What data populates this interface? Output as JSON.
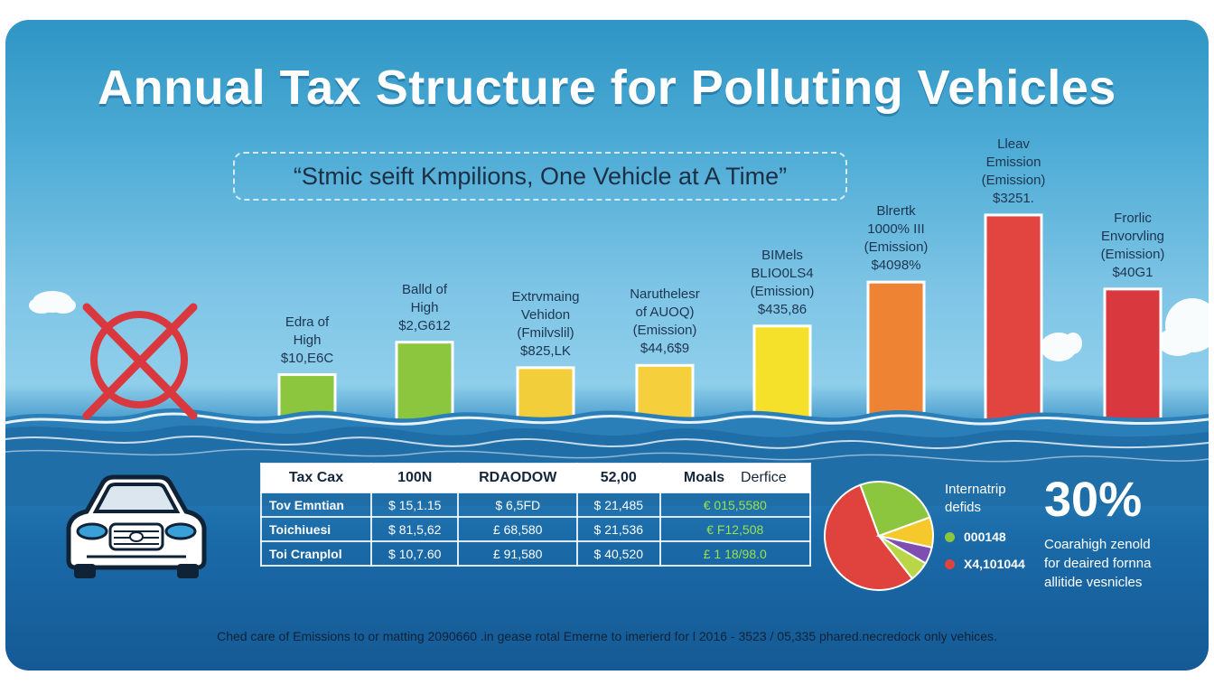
{
  "title": "Annual Tax Structure for Polluting Vehicles",
  "tagline": "“Stmic seift Kmpilions, One Vehicle at A Time”",
  "chart_data": {
    "type": "bar",
    "title": "Annual Tax Structure for Polluting Vehicles",
    "categories": [
      [
        "Edra of",
        "High",
        "$10,E6C"
      ],
      [
        "Balld of",
        "High",
        "$2,G612"
      ],
      [
        "Extrvmaing",
        "Vehidon",
        "(Fmilvslil)",
        "$825,LK"
      ],
      [
        "Naruthelesr",
        "of AUOQ)",
        "(Emission)",
        "$44,6$9"
      ],
      [
        "BIMels",
        "BLIO0LS4",
        "(Emission)",
        "$435,86"
      ],
      [
        "Blrertk",
        "1000% III",
        "(Emission)",
        "$4098%"
      ],
      [
        "Lleav",
        "Emission",
        "(Emission)",
        "$3251."
      ],
      [
        "Frorlic",
        "Envorvling",
        "(Emission)",
        "$40G1"
      ]
    ],
    "values": [
      2.4,
      3.8,
      2.7,
      2.8,
      4.5,
      6.4,
      9.3,
      6.1
    ],
    "colors": [
      "#8cc63e",
      "#8cc63e",
      "#f2cf3a",
      "#f5cf3c",
      "#f5e12a",
      "#ee8333",
      "#e2453f",
      "#d9383f"
    ],
    "ylim": [
      0,
      10
    ]
  },
  "table": {
    "headers": [
      "Tax Cax",
      "100N",
      "RDAODOW",
      "52,00",
      "Moals",
      "Derfice"
    ],
    "rows": [
      [
        "Tov Emntian",
        "$ 15,1.15",
        "$ 6,5FD",
        "$ 21,485",
        "€ 015,5580"
      ],
      [
        "Toichiuesi",
        "$ 81,5,62",
        "£ 68,580",
        "$ 21,536",
        "€ F12,508"
      ],
      [
        "Toi Cranplol",
        "$ 10,7.60",
        "£ 91,580",
        "$ 40,520",
        "£ 1 18/98.0"
      ]
    ]
  },
  "pie": {
    "slices": [
      {
        "value": 55,
        "color": "#e0433e"
      },
      {
        "value": 6,
        "color": "#b9d646"
      },
      {
        "value": 5,
        "color": "#7e4fb0"
      },
      {
        "value": 9,
        "color": "#f5c92c"
      },
      {
        "value": 25,
        "color": "#8cc63e"
      }
    ]
  },
  "legend": {
    "heading_line1": "Internatrip",
    "heading_line2": "defids",
    "items": [
      {
        "color": "#8cc63e",
        "label": "000148"
      },
      {
        "color": "#e0433e",
        "label": "X4,101044"
      }
    ]
  },
  "highlight": {
    "value": "30%",
    "caption_line1": "Coarahigh zenold",
    "caption_line2": "for deaired fornna",
    "caption_line3": "allitide vesnicles"
  },
  "footnote": "Ched care of Emissions to or matting 2090660 .in gease rotal Emerne to imerierd for l 2016 - 3523 / 05,335 phared.necredock only vehices."
}
